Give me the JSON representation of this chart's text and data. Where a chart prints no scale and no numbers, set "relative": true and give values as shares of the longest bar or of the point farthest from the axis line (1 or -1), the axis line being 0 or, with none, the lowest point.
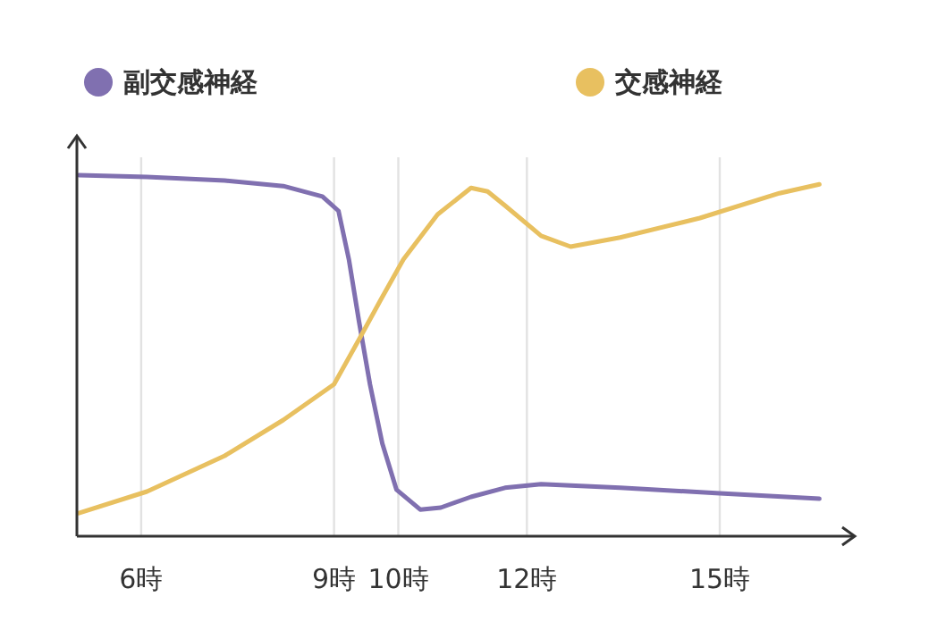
{
  "chart_data": {
    "type": "line",
    "relative": true,
    "grid": "x",
    "legend": "top",
    "marker": "none",
    "line_style": "solid",
    "xlim": [
      5,
      17.1
    ],
    "xticks": [
      {
        "value": 6,
        "label": "6時"
      },
      {
        "value": 9,
        "label": "9時"
      },
      {
        "value": 10,
        "label": "10時"
      },
      {
        "value": 12,
        "label": "12時"
      },
      {
        "value": 15,
        "label": "15時"
      }
    ],
    "series": [
      {
        "name": "副交感神経",
        "color": "#8070b0",
        "x": [
          5.03,
          6.09,
          7.3,
          8.21,
          8.82,
          9.07,
          9.23,
          9.39,
          9.56,
          9.75,
          9.97,
          10.34,
          10.66,
          11.13,
          11.66,
          12.22,
          13.45,
          15,
          16.55
        ],
        "values": [
          1,
          0.995,
          0.985,
          0.97,
          0.941,
          0.901,
          0.767,
          0.594,
          0.421,
          0.257,
          0.129,
          0.074,
          0.079,
          0.109,
          0.134,
          0.144,
          0.134,
          0.119,
          0.104
        ]
      },
      {
        "name": "交感神経",
        "color": "#e8c060",
        "x": [
          5.03,
          6.09,
          7.3,
          8.21,
          9,
          9.39,
          9.72,
          10.08,
          10.61,
          11.13,
          11.39,
          11.66,
          12.22,
          12.68,
          13.45,
          14.69,
          15.93,
          16.55
        ],
        "values": [
          0.064,
          0.124,
          0.223,
          0.322,
          0.421,
          0.545,
          0.653,
          0.767,
          0.891,
          0.965,
          0.955,
          0.916,
          0.832,
          0.802,
          0.827,
          0.881,
          0.95,
          0.975
        ]
      }
    ]
  }
}
